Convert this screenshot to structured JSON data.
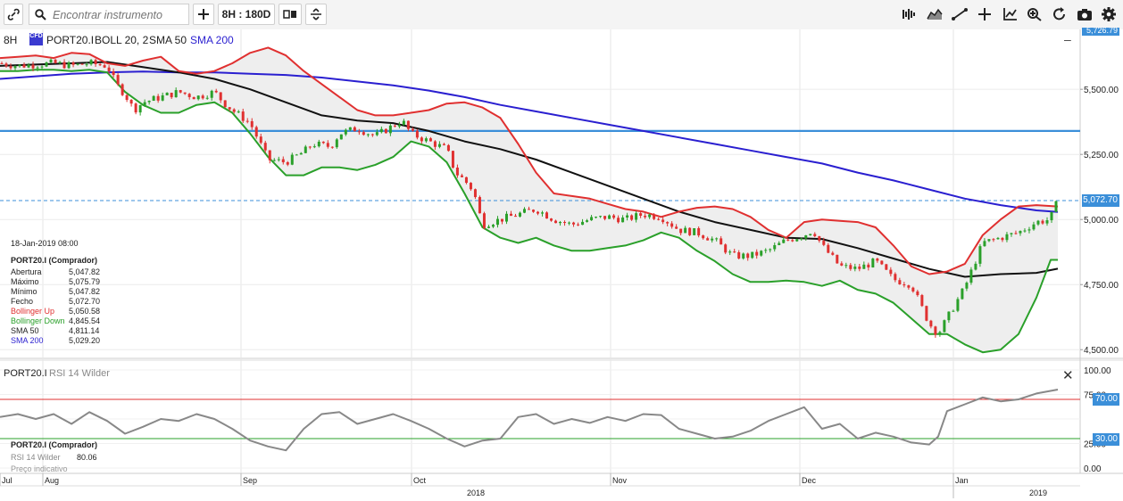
{
  "toolbar": {
    "search_placeholder": "Encontrar instrumento",
    "interval_label": "8H : 180D",
    "icons": [
      "link-icon",
      "search-icon",
      "plus-icon",
      "candle-style-icon",
      "compare-icon",
      "indicators-icon",
      "draw-icon",
      "crosshair-icon",
      "axis-icon",
      "zoom-icon",
      "refresh-icon",
      "camera-icon",
      "settings-icon"
    ]
  },
  "main_header": {
    "period": "8H",
    "badge": "CFD",
    "symbol": "PORT20.I",
    "boll": "BOLL 20, 2",
    "sma50": "SMA 50",
    "sma200": "SMA 200"
  },
  "info_panel": {
    "date": "18-Jan-2019 08:00",
    "title": "PORT20.I (Comprador)",
    "rows": [
      {
        "label": "Abertura",
        "value": "5,047.82",
        "color": "#222222"
      },
      {
        "label": "Máximo",
        "value": "5,075.79",
        "color": "#222222"
      },
      {
        "label": "Mínimo",
        "value": "5,047.82",
        "color": "#222222"
      },
      {
        "label": "Fecho",
        "value": "5,072.70",
        "color": "#222222"
      },
      {
        "label": "Bollinger Up",
        "value": "5,050.58",
        "color": "#e03030"
      },
      {
        "label": "Bollinger Down",
        "value": "4,845.54",
        "color": "#2aa02a"
      },
      {
        "label": "SMA 50",
        "value": "4,811.14",
        "color": "#222222"
      },
      {
        "label": "SMA 200",
        "value": "5,029.20",
        "color": "#2a1fd0"
      }
    ]
  },
  "rsi_header": {
    "symbol": "PORT20.I",
    "indicator": "RSI 14 Wilder"
  },
  "rsi_info": {
    "title": "PORT20.I (Comprador)",
    "label": "RSI 14 Wilder",
    "value": "80.06",
    "note": "Preço indicativo"
  },
  "price_tags": {
    "top": "5,726.79",
    "last": "5,072.70",
    "rsi_upper": "70.00",
    "rsi_lower": "30.00"
  },
  "colors": {
    "bull": "#2aa02a",
    "bear": "#e03030",
    "sma50": "#111111",
    "sma200": "#2a1fd0",
    "boll_up": "#e03030",
    "boll_down": "#2aa02a",
    "hline": "#3b8fd9",
    "rsi": "#888888"
  },
  "chart_data": {
    "type": "line",
    "main": {
      "y_ticks": [
        "5,500.00",
        "5,250.00",
        "5,000.00",
        "4,750.00",
        "4,500.00"
      ],
      "y_tick_values": [
        5500,
        5250,
        5000,
        4750,
        4500
      ],
      "ylim": [
        4470,
        5730
      ],
      "horizontal_line": 5340,
      "last_price": 5072.7,
      "boll_up": [
        [
          0,
          5620
        ],
        [
          20,
          5625
        ],
        [
          40,
          5630
        ],
        [
          60,
          5620
        ],
        [
          80,
          5640
        ],
        [
          100,
          5635
        ],
        [
          120,
          5600
        ],
        [
          140,
          5590
        ],
        [
          160,
          5610
        ],
        [
          180,
          5625
        ],
        [
          200,
          5570
        ],
        [
          220,
          5560
        ],
        [
          240,
          5570
        ],
        [
          260,
          5600
        ],
        [
          280,
          5640
        ],
        [
          300,
          5660
        ],
        [
          320,
          5630
        ],
        [
          340,
          5570
        ],
        [
          360,
          5520
        ],
        [
          380,
          5470
        ],
        [
          400,
          5420
        ],
        [
          420,
          5400
        ],
        [
          440,
          5400
        ],
        [
          460,
          5410
        ],
        [
          480,
          5420
        ],
        [
          500,
          5445
        ],
        [
          520,
          5450
        ],
        [
          540,
          5430
        ],
        [
          560,
          5390
        ],
        [
          580,
          5290
        ],
        [
          600,
          5180
        ],
        [
          620,
          5100
        ],
        [
          640,
          5090
        ],
        [
          660,
          5080
        ],
        [
          680,
          5060
        ],
        [
          700,
          5040
        ],
        [
          720,
          5030
        ],
        [
          740,
          5010
        ],
        [
          760,
          5030
        ],
        [
          780,
          5045
        ],
        [
          800,
          5050
        ],
        [
          820,
          5040
        ],
        [
          840,
          5010
        ],
        [
          860,
          4960
        ],
        [
          880,
          4930
        ],
        [
          900,
          4990
        ],
        [
          920,
          5000
        ],
        [
          940,
          4995
        ],
        [
          960,
          4990
        ],
        [
          980,
          4970
        ],
        [
          1000,
          4900
        ],
        [
          1020,
          4820
        ],
        [
          1040,
          4790
        ],
        [
          1060,
          4800
        ],
        [
          1080,
          4830
        ],
        [
          1100,
          4940
        ],
        [
          1120,
          5000
        ],
        [
          1140,
          5050
        ],
        [
          1160,
          5055
        ],
        [
          1184,
          5050
        ]
      ],
      "boll_down": [
        [
          0,
          5570
        ],
        [
          20,
          5570
        ],
        [
          40,
          5575
        ],
        [
          60,
          5575
        ],
        [
          80,
          5570
        ],
        [
          100,
          5575
        ],
        [
          120,
          5565
        ],
        [
          140,
          5490
        ],
        [
          160,
          5440
        ],
        [
          180,
          5410
        ],
        [
          200,
          5410
        ],
        [
          220,
          5440
        ],
        [
          240,
          5450
        ],
        [
          260,
          5410
        ],
        [
          280,
          5330
        ],
        [
          300,
          5240
        ],
        [
          320,
          5170
        ],
        [
          340,
          5170
        ],
        [
          360,
          5200
        ],
        [
          380,
          5200
        ],
        [
          400,
          5190
        ],
        [
          420,
          5210
        ],
        [
          440,
          5240
        ],
        [
          460,
          5300
        ],
        [
          480,
          5280
        ],
        [
          500,
          5220
        ],
        [
          520,
          5100
        ],
        [
          540,
          4970
        ],
        [
          560,
          4930
        ],
        [
          580,
          4910
        ],
        [
          600,
          4930
        ],
        [
          620,
          4900
        ],
        [
          640,
          4880
        ],
        [
          660,
          4880
        ],
        [
          680,
          4890
        ],
        [
          700,
          4900
        ],
        [
          720,
          4920
        ],
        [
          740,
          4950
        ],
        [
          760,
          4930
        ],
        [
          780,
          4880
        ],
        [
          800,
          4840
        ],
        [
          820,
          4790
        ],
        [
          840,
          4760
        ],
        [
          860,
          4760
        ],
        [
          880,
          4765
        ],
        [
          900,
          4760
        ],
        [
          920,
          4745
        ],
        [
          940,
          4765
        ],
        [
          960,
          4730
        ],
        [
          980,
          4715
        ],
        [
          1000,
          4680
        ],
        [
          1020,
          4620
        ],
        [
          1040,
          4560
        ],
        [
          1060,
          4560
        ],
        [
          1080,
          4520
        ],
        [
          1100,
          4490
        ],
        [
          1120,
          4500
        ],
        [
          1140,
          4560
        ],
        [
          1160,
          4700
        ],
        [
          1176,
          4845
        ],
        [
          1184,
          4845
        ]
      ],
      "sma50": [
        [
          0,
          5590
        ],
        [
          40,
          5595
        ],
        [
          80,
          5600
        ],
        [
          120,
          5605
        ],
        [
          160,
          5585
        ],
        [
          200,
          5565
        ],
        [
          240,
          5540
        ],
        [
          280,
          5500
        ],
        [
          320,
          5450
        ],
        [
          360,
          5400
        ],
        [
          400,
          5380
        ],
        [
          440,
          5370
        ],
        [
          480,
          5340
        ],
        [
          520,
          5300
        ],
        [
          560,
          5270
        ],
        [
          600,
          5230
        ],
        [
          640,
          5180
        ],
        [
          680,
          5130
        ],
        [
          720,
          5080
        ],
        [
          760,
          5030
        ],
        [
          800,
          4990
        ],
        [
          840,
          4960
        ],
        [
          880,
          4930
        ],
        [
          920,
          4925
        ],
        [
          960,
          4890
        ],
        [
          1000,
          4850
        ],
        [
          1040,
          4810
        ],
        [
          1080,
          4780
        ],
        [
          1120,
          4790
        ],
        [
          1160,
          4795
        ],
        [
          1184,
          4811
        ]
      ],
      "sma200": [
        [
          0,
          5540
        ],
        [
          40,
          5550
        ],
        [
          80,
          5560
        ],
        [
          120,
          5565
        ],
        [
          160,
          5568
        ],
        [
          200,
          5565
        ],
        [
          240,
          5565
        ],
        [
          280,
          5560
        ],
        [
          320,
          5555
        ],
        [
          360,
          5545
        ],
        [
          400,
          5530
        ],
        [
          440,
          5515
        ],
        [
          480,
          5495
        ],
        [
          520,
          5470
        ],
        [
          560,
          5440
        ],
        [
          600,
          5415
        ],
        [
          640,
          5390
        ],
        [
          680,
          5365
        ],
        [
          720,
          5340
        ],
        [
          760,
          5315
        ],
        [
          800,
          5290
        ],
        [
          840,
          5265
        ],
        [
          880,
          5240
        ],
        [
          920,
          5215
        ],
        [
          960,
          5180
        ],
        [
          1000,
          5150
        ],
        [
          1040,
          5115
        ],
        [
          1080,
          5080
        ],
        [
          1120,
          5055
        ],
        [
          1160,
          5035
        ],
        [
          1184,
          5029
        ]
      ],
      "price": [
        [
          0,
          5600
        ],
        [
          20,
          5590
        ],
        [
          40,
          5595
        ],
        [
          60,
          5600
        ],
        [
          80,
          5590
        ],
        [
          100,
          5600
        ],
        [
          120,
          5590
        ],
        [
          130,
          5520
        ],
        [
          140,
          5480
        ],
        [
          150,
          5420
        ],
        [
          160,
          5450
        ],
        [
          180,
          5470
        ],
        [
          200,
          5490
        ],
        [
          220,
          5470
        ],
        [
          240,
          5490
        ],
        [
          250,
          5450
        ],
        [
          260,
          5420
        ],
        [
          280,
          5370
        ],
        [
          290,
          5300
        ],
        [
          300,
          5230
        ],
        [
          320,
          5220
        ],
        [
          340,
          5260
        ],
        [
          350,
          5290
        ],
        [
          370,
          5280
        ],
        [
          380,
          5330
        ],
        [
          400,
          5350
        ],
        [
          420,
          5320
        ],
        [
          440,
          5360
        ],
        [
          450,
          5380
        ],
        [
          460,
          5330
        ],
        [
          480,
          5300
        ],
        [
          500,
          5270
        ],
        [
          510,
          5180
        ],
        [
          520,
          5150
        ],
        [
          530,
          5110
        ],
        [
          540,
          4980
        ],
        [
          560,
          5000
        ],
        [
          580,
          5020
        ],
        [
          600,
          5040
        ],
        [
          620,
          5000
        ],
        [
          640,
          4980
        ],
        [
          660,
          5000
        ],
        [
          680,
          5010
        ],
        [
          700,
          5000
        ],
        [
          720,
          5020
        ],
        [
          740,
          5010
        ],
        [
          760,
          4960
        ],
        [
          780,
          4950
        ],
        [
          800,
          4920
        ],
        [
          820,
          4860
        ],
        [
          840,
          4860
        ],
        [
          860,
          4880
        ],
        [
          880,
          4920
        ],
        [
          900,
          4940
        ],
        [
          910,
          4960
        ],
        [
          920,
          4900
        ],
        [
          940,
          4820
        ],
        [
          960,
          4810
        ],
        [
          980,
          4840
        ],
        [
          1000,
          4770
        ],
        [
          1020,
          4750
        ],
        [
          1040,
          4600
        ],
        [
          1050,
          4560
        ],
        [
          1060,
          4620
        ],
        [
          1080,
          4740
        ],
        [
          1100,
          4910
        ],
        [
          1120,
          4930
        ],
        [
          1140,
          4950
        ],
        [
          1160,
          4990
        ],
        [
          1175,
          5000
        ],
        [
          1184,
          5072
        ]
      ]
    },
    "rsi": {
      "y_ticks": [
        "100.00",
        "75.00",
        "50.00",
        "25.00",
        "0.00"
      ],
      "y_tick_values": [
        100,
        75,
        50,
        25,
        0
      ],
      "ylim": [
        0,
        100
      ],
      "bands": [
        70,
        30
      ],
      "last_value": 80.06,
      "values": [
        [
          0,
          52
        ],
        [
          20,
          55
        ],
        [
          40,
          50
        ],
        [
          60,
          55
        ],
        [
          80,
          45
        ],
        [
          100,
          57
        ],
        [
          120,
          48
        ],
        [
          140,
          35
        ],
        [
          160,
          42
        ],
        [
          180,
          50
        ],
        [
          200,
          48
        ],
        [
          220,
          55
        ],
        [
          240,
          50
        ],
        [
          260,
          40
        ],
        [
          280,
          28
        ],
        [
          300,
          22
        ],
        [
          320,
          18
        ],
        [
          340,
          40
        ],
        [
          360,
          55
        ],
        [
          380,
          57
        ],
        [
          400,
          45
        ],
        [
          420,
          50
        ],
        [
          440,
          55
        ],
        [
          460,
          48
        ],
        [
          480,
          40
        ],
        [
          500,
          30
        ],
        [
          520,
          22
        ],
        [
          540,
          28
        ],
        [
          560,
          30
        ],
        [
          580,
          52
        ],
        [
          600,
          55
        ],
        [
          620,
          45
        ],
        [
          640,
          50
        ],
        [
          660,
          46
        ],
        [
          680,
          52
        ],
        [
          700,
          48
        ],
        [
          720,
          55
        ],
        [
          740,
          54
        ],
        [
          760,
          40
        ],
        [
          780,
          35
        ],
        [
          800,
          30
        ],
        [
          820,
          32
        ],
        [
          840,
          38
        ],
        [
          860,
          48
        ],
        [
          880,
          55
        ],
        [
          900,
          62
        ],
        [
          920,
          40
        ],
        [
          940,
          45
        ],
        [
          960,
          30
        ],
        [
          980,
          36
        ],
        [
          1000,
          32
        ],
        [
          1020,
          26
        ],
        [
          1040,
          24
        ],
        [
          1050,
          32
        ],
        [
          1060,
          58
        ],
        [
          1080,
          65
        ],
        [
          1100,
          72
        ],
        [
          1120,
          68
        ],
        [
          1140,
          70
        ],
        [
          1160,
          76
        ],
        [
          1184,
          80
        ]
      ]
    },
    "x_months": [
      "Jul",
      "Aug",
      "Sep",
      "Oct",
      "Nov",
      "Dec",
      "Jan"
    ],
    "x_years": [
      "2018",
      "2019"
    ]
  }
}
